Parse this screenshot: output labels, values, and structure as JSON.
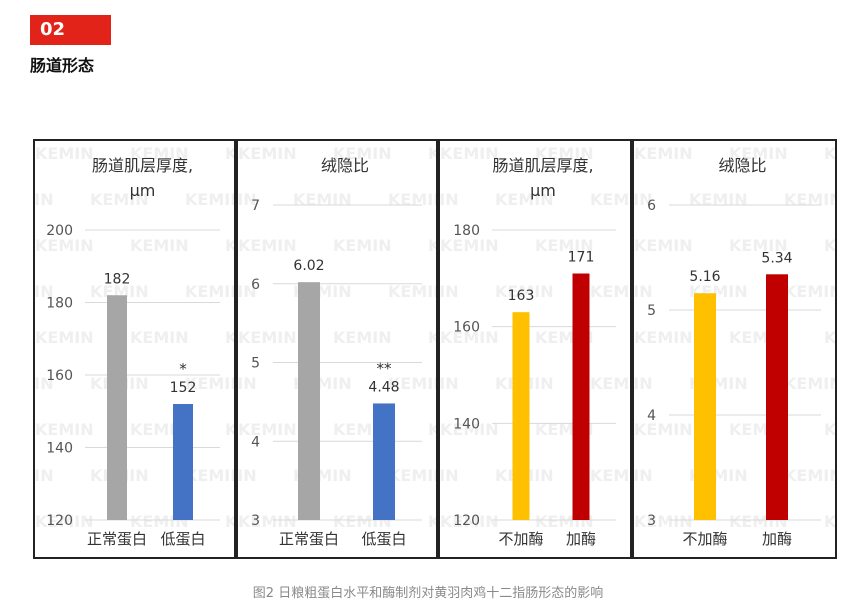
{
  "section": {
    "number": "02",
    "title": "肠道形态"
  },
  "caption": "图2 日粮粗蛋白水平和酶制剂对黄羽肉鸡十二指肠形态的影响",
  "watermark": "KEMIN",
  "chart_data": [
    {
      "type": "bar",
      "title_lines": [
        "肠道肌层厚度,",
        "μm"
      ],
      "categories": [
        "正常蛋白",
        "低蛋白"
      ],
      "values": [
        182,
        152
      ],
      "value_labels": [
        "182",
        "152"
      ],
      "annotations": [
        "",
        "*"
      ],
      "colors": [
        "#a6a6a6",
        "#4472c4"
      ],
      "ylim": [
        120,
        200
      ],
      "yticks": [
        120,
        140,
        160,
        180,
        200
      ],
      "grid": true
    },
    {
      "type": "bar",
      "title_lines": [
        "绒隐比"
      ],
      "categories": [
        "正常蛋白",
        "低蛋白"
      ],
      "values": [
        6.02,
        4.48
      ],
      "value_labels": [
        "6.02",
        "4.48"
      ],
      "annotations": [
        "",
        "**"
      ],
      "colors": [
        "#a6a6a6",
        "#4472c4"
      ],
      "ylim": [
        3,
        7
      ],
      "yticks": [
        3,
        4,
        5,
        6,
        7
      ],
      "grid": true
    },
    {
      "type": "bar",
      "title_lines": [
        "肠道肌层厚度,",
        "μm"
      ],
      "categories": [
        "不加酶",
        "加酶"
      ],
      "values": [
        163,
        171
      ],
      "value_labels": [
        "163",
        "171"
      ],
      "annotations": [
        "",
        ""
      ],
      "colors": [
        "#ffc000",
        "#c00000"
      ],
      "ylim": [
        120,
        180
      ],
      "yticks": [
        120,
        140,
        160,
        180
      ],
      "grid": true
    },
    {
      "type": "bar",
      "title_lines": [
        "绒隐比"
      ],
      "categories": [
        "不加酶",
        "加酶"
      ],
      "values": [
        5.16,
        5.34
      ],
      "value_labels": [
        "5.16",
        "5.34"
      ],
      "annotations": [
        "",
        ""
      ],
      "colors": [
        "#ffc000",
        "#c00000"
      ],
      "ylim": [
        3,
        6
      ],
      "yticks": [
        3,
        4,
        5,
        6
      ],
      "grid": true
    }
  ]
}
